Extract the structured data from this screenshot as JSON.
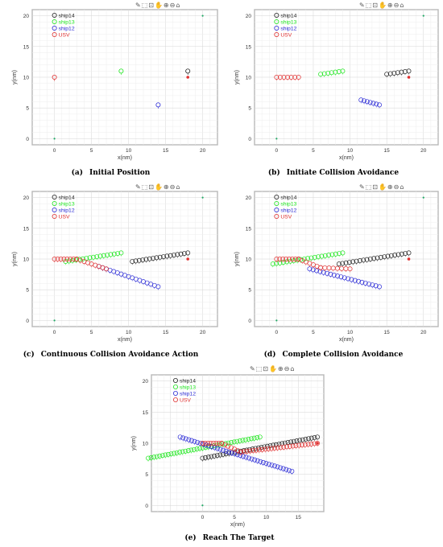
{
  "toolbar_glyphs": [
    "✎",
    "⬚",
    "⊡",
    "✋",
    "⊕",
    "⊖",
    "⌂"
  ],
  "chart_data": [
    {
      "type": "scatter",
      "id": "a",
      "caption_label": "(a)",
      "caption_text": "Initial Position",
      "xlabel": "x(nm)",
      "ylabel": "y(nm)",
      "xlim": [
        -3,
        22
      ],
      "ylim": [
        -1,
        21
      ],
      "xticks": [
        "0",
        "5",
        "10",
        "15",
        "20"
      ],
      "yticks": [
        "0",
        "5",
        "10",
        "15",
        "20"
      ],
      "legend": [
        "ship14",
        "ship13",
        "ship12",
        "USV"
      ],
      "markers": [
        {
          "series": "ship14",
          "x": 18,
          "y": 11
        },
        {
          "series": "ship13",
          "x": 9,
          "y": 11
        },
        {
          "series": "ship12",
          "x": 14,
          "y": 5.5
        },
        {
          "series": "USV",
          "x": 0,
          "y": 10
        }
      ],
      "targets": [
        {
          "x": 18,
          "y": 10
        }
      ],
      "dots": [
        {
          "x": 0,
          "y": 0
        },
        {
          "x": 20,
          "y": 20
        }
      ]
    },
    {
      "type": "scatter",
      "id": "b",
      "caption_label": "(b)",
      "caption_text": "Initiate Collision Avoidance",
      "xlabel": "x(nm)",
      "ylabel": "y(nm)",
      "xlim": [
        -3,
        22
      ],
      "ylim": [
        -1,
        21
      ],
      "xticks": [
        "0",
        "5",
        "10",
        "15",
        "20"
      ],
      "yticks": [
        "0",
        "5",
        "10",
        "15",
        "20"
      ],
      "legend": [
        "ship14",
        "ship13",
        "ship12",
        "USV"
      ],
      "tracks": [
        {
          "series": "ship14",
          "x0": 18,
          "y0": 11,
          "x1": 15,
          "y1": 10.5,
          "n": 7
        },
        {
          "series": "ship13",
          "x0": 9,
          "y0": 11,
          "x1": 6,
          "y1": 10.5,
          "n": 7
        },
        {
          "series": "ship12",
          "x0": 14,
          "y0": 5.5,
          "x1": 11.5,
          "y1": 6.3,
          "n": 7
        },
        {
          "series": "USV",
          "x0": 0,
          "y0": 10,
          "x1": 3,
          "y1": 10,
          "n": 7
        }
      ],
      "targets": [
        {
          "x": 18,
          "y": 10
        }
      ],
      "dots": [
        {
          "x": 0,
          "y": 0
        },
        {
          "x": 20,
          "y": 20
        }
      ]
    },
    {
      "type": "scatter",
      "id": "c",
      "caption_label": "(c)",
      "caption_text": "Continuous Collision Avoidance Action",
      "xlabel": "x(nm)",
      "ylabel": "y(nm)",
      "xlim": [
        -3,
        22
      ],
      "ylim": [
        -1,
        21
      ],
      "xticks": [
        "0",
        "5",
        "10",
        "15",
        "20"
      ],
      "yticks": [
        "0",
        "5",
        "10",
        "15",
        "20"
      ],
      "legend": [
        "ship14",
        "ship13",
        "ship12",
        "USV"
      ],
      "tracks": [
        {
          "series": "ship14",
          "x0": 18,
          "y0": 11,
          "x1": 10.5,
          "y1": 9.6,
          "n": 17
        },
        {
          "series": "ship13",
          "x0": 9,
          "y0": 11,
          "x1": 1.5,
          "y1": 9.6,
          "n": 17
        },
        {
          "series": "ship12",
          "x0": 14,
          "y0": 5.5,
          "x1": 6,
          "y1": 8.8,
          "n": 17
        },
        {
          "series": "USV",
          "x0": 0,
          "y0": 10,
          "x1": 3,
          "y1": 10,
          "n": 8
        },
        {
          "series": "USV",
          "x0": 3,
          "y0": 10,
          "x1": 7,
          "y1": 8.4,
          "n": 9
        }
      ],
      "targets": [
        {
          "x": 18,
          "y": 10
        }
      ],
      "dots": [
        {
          "x": 0,
          "y": 0
        },
        {
          "x": 20,
          "y": 20
        }
      ]
    },
    {
      "type": "scatter",
      "id": "d",
      "caption_label": "(d)",
      "caption_text": "Complete Collision Avoidance",
      "xlabel": "x(nm)",
      "ylabel": "y(nm)",
      "xlim": [
        -3,
        22
      ],
      "ylim": [
        -1,
        21
      ],
      "xticks": [
        "0",
        "5",
        "10",
        "15",
        "20"
      ],
      "yticks": [
        "0",
        "5",
        "10",
        "15",
        "20"
      ],
      "legend": [
        "ship14",
        "ship13",
        "ship12",
        "USV"
      ],
      "tracks": [
        {
          "series": "ship14",
          "x0": 18,
          "y0": 11,
          "x1": 8.5,
          "y1": 9.2,
          "n": 21
        },
        {
          "series": "ship13",
          "x0": 9,
          "y0": 11,
          "x1": -0.5,
          "y1": 9.2,
          "n": 21
        },
        {
          "series": "ship12",
          "x0": 14,
          "y0": 5.5,
          "x1": 4.5,
          "y1": 8.4,
          "n": 21
        },
        {
          "series": "USV",
          "x0": 0,
          "y0": 10,
          "x1": 3,
          "y1": 10,
          "n": 8
        },
        {
          "series": "USV",
          "x0": 3,
          "y0": 10,
          "x1": 6,
          "y1": 8.6,
          "n": 7
        },
        {
          "series": "USV",
          "x0": 6,
          "y0": 8.6,
          "x1": 10,
          "y1": 8.4,
          "n": 8
        }
      ],
      "targets": [
        {
          "x": 18,
          "y": 10
        }
      ],
      "dots": [
        {
          "x": 0,
          "y": 0
        },
        {
          "x": 20,
          "y": 20
        }
      ]
    },
    {
      "type": "scatter",
      "id": "e",
      "caption_label": "(e)",
      "caption_text": "Reach The Target",
      "xlabel": "x(nm)",
      "ylabel": "y(nm)",
      "xlim": [
        -8,
        19
      ],
      "ylim": [
        -1,
        21
      ],
      "xticks": [
        "0",
        "5",
        "10",
        "15"
      ],
      "yticks": [
        "0",
        "5",
        "10",
        "15",
        "20"
      ],
      "legend": [
        "ship14",
        "ship13",
        "ship12",
        "USV"
      ],
      "tracks": [
        {
          "series": "ship14",
          "x0": 18,
          "y0": 11,
          "x1": 0,
          "y1": 7.6,
          "n": 40
        },
        {
          "series": "ship13",
          "x0": 9,
          "y0": 11,
          "x1": -8.5,
          "y1": 7.6,
          "n": 40
        },
        {
          "series": "ship12",
          "x0": 14,
          "y0": 5.5,
          "x1": -3.5,
          "y1": 11,
          "n": 40
        },
        {
          "series": "USV",
          "x0": 0,
          "y0": 10,
          "x1": 3,
          "y1": 10,
          "n": 8
        },
        {
          "series": "USV",
          "x0": 3,
          "y0": 10,
          "x1": 6,
          "y1": 8.6,
          "n": 7
        },
        {
          "series": "USV",
          "x0": 6,
          "y0": 8.6,
          "x1": 18,
          "y1": 10,
          "n": 26
        }
      ],
      "targets": [
        {
          "x": 18,
          "y": 10
        }
      ],
      "dots": [
        {
          "x": 0,
          "y": 0
        }
      ]
    }
  ]
}
